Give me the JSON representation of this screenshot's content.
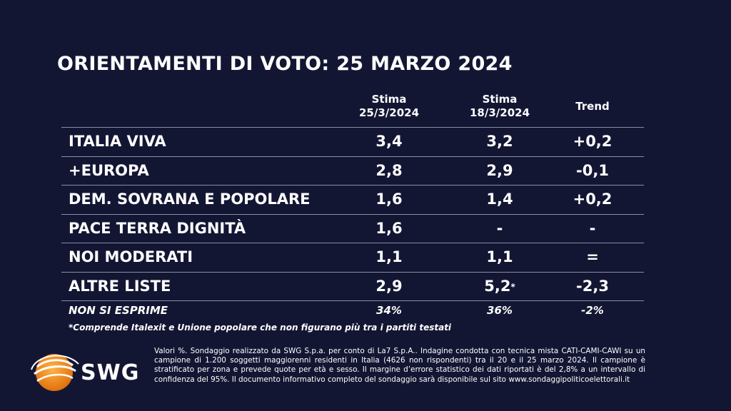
{
  "title": "ORIENTAMENTI DI VOTO: 25 MARZO 2024",
  "chart_data": {
    "type": "table",
    "columns": [
      {
        "line1": "Stima",
        "line2": "25/3/2024"
      },
      {
        "line1": "Stima",
        "line2": "18/3/2024"
      },
      {
        "line1": "Trend",
        "line2": ""
      }
    ],
    "rows": [
      {
        "name": "ITALIA VIVA",
        "v1": "3,4",
        "v2": "3,2",
        "v2_mark": "",
        "trend": "+0,2"
      },
      {
        "name": "+EUROPA",
        "v1": "2,8",
        "v2": "2,9",
        "v2_mark": "",
        "trend": "-0,1"
      },
      {
        "name": "DEM. SOVRANA E POPOLARE",
        "v1": "1,6",
        "v2": "1,4",
        "v2_mark": "",
        "trend": "+0,2"
      },
      {
        "name": "PACE TERRA DIGNITÀ",
        "v1": "1,6",
        "v2": "-",
        "v2_mark": "",
        "trend": "-"
      },
      {
        "name": "NOI MODERATI",
        "v1": "1,1",
        "v2": "1,1",
        "v2_mark": "",
        "trend": "="
      },
      {
        "name": "ALTRE LISTE",
        "v1": "2,9",
        "v2": "5,2",
        "v2_mark": "*",
        "trend": "-2,3"
      }
    ],
    "summary": {
      "name": "NON SI ESPRIME",
      "v1": "34%",
      "v2": "36%",
      "trend": "-2%"
    }
  },
  "footnote": "*Comprende Italexit e Unione popolare che non figurano più tra i partiti testati",
  "logo": {
    "text": "SWG",
    "colors": {
      "orange": "#f28c1c",
      "white": "#ffffff"
    }
  },
  "disclaimer": "Valori %. Sondaggio realizzato da SWG S.p.a. per conto di La7 S.p.A.. Indagine condotta con tecnica mista CATI-CAMI-CAWI su un campione di 1.200 soggetti maggiorenni residenti in Italia (4626 non rispondenti) tra il 20 e il 25 marzo 2024. Il campione è stratificato per zona e prevede quote per età e sesso. Il margine d’errore statistico dei dati riportati è del 2,8% a un intervallo di confidenza del 95%. Il documento informativo completo del sondaggio sarà disponibile sul sito www.sondaggipoliticoelettorali.it",
  "background_color": "#131633"
}
